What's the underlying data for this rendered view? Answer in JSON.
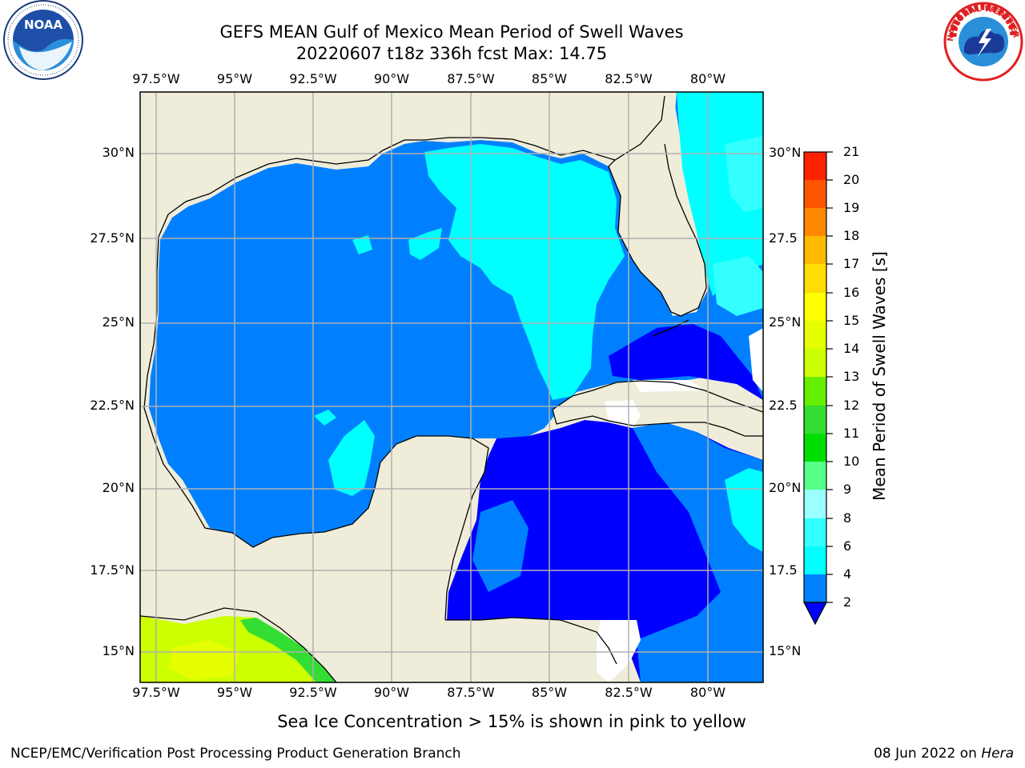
{
  "header": {
    "title_line1": "GEFS MEAN Gulf of Mexico Mean Period of Swell Waves",
    "title_line2": "20220607 t18z 336h fcst   Max: 14.75"
  },
  "logos": {
    "left_name": "NOAA",
    "right_ring_text": "NATIONAL WEATHER SERVICE"
  },
  "map": {
    "lon_labels": [
      "97.5°W",
      "95°W",
      "92.5°W",
      "90°W",
      "87.5°W",
      "85°W",
      "82.5°W",
      "80°W"
    ],
    "lat_labels_left": [
      "30°N",
      "27.5°N",
      "25°N",
      "22.5°N",
      "20°N",
      "17.5°N",
      "15°N"
    ],
    "lat_labels_right": [
      "30°N",
      "27.5",
      "25°N",
      "22.5",
      "20°N",
      "17.5",
      "15°N"
    ],
    "colors": {
      "land": "#efedda",
      "ocean_2_4": "#0080ff",
      "ocean_lt2": "#0000ff",
      "ocean_4_6": "#00ffff",
      "ocean_6_8": "#33ffff",
      "swell_10_11": "#33dd33",
      "swell_12_13": "#ccff00",
      "swell_13_14": "#e5ff00",
      "grid": "#b0b0b0"
    }
  },
  "colorbar": {
    "label": "Mean Period of Swell Waves [s]",
    "ticks": [
      "2",
      "4",
      "6",
      "8",
      "9",
      "10",
      "11",
      "12",
      "13",
      "14",
      "15",
      "16",
      "17",
      "18",
      "19",
      "20",
      "21"
    ],
    "colors": [
      "#0080ff",
      "#00ffff",
      "#33ffff",
      "#99ffff",
      "#55ff88",
      "#00dd00",
      "#33dd33",
      "#66ee00",
      "#ccff00",
      "#e5ff00",
      "#ffff00",
      "#ffdd00",
      "#ffbb00",
      "#ff8800",
      "#ff5500",
      "#ff2200"
    ],
    "under_color": "#0000ff"
  },
  "caption": "Sea Ice Concentration > 15% is shown in pink to yellow",
  "footer": {
    "left": "NCEP/EMC/Verification Post Processing Product Generation Branch",
    "right_date": "08 Jun 2022 on",
    "right_host": "Hera"
  }
}
